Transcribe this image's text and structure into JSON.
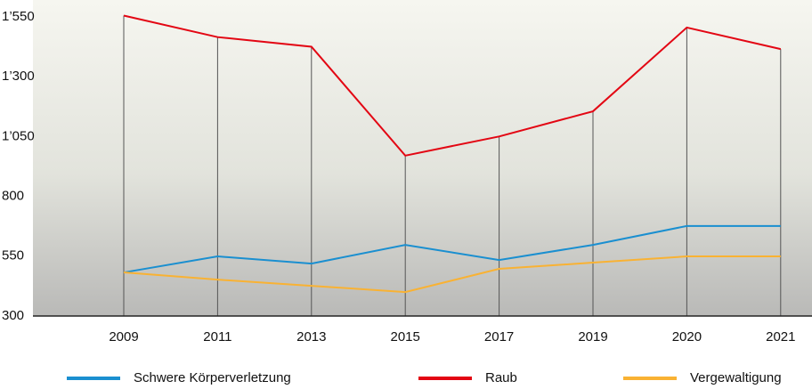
{
  "chart_data": {
    "type": "line",
    "categories": [
      "2009",
      "2011",
      "2013",
      "2015",
      "2017",
      "2019",
      "2020",
      "2021"
    ],
    "series": [
      {
        "name": "Schwere Körperverletzung",
        "color": "#1a8fd0",
        "values": [
          482,
          549,
          519,
          597,
          534,
          597,
          676,
          676
        ]
      },
      {
        "name": "Raub",
        "color": "#e30613",
        "values": [
          1555,
          1465,
          1425,
          970,
          1050,
          1155,
          1505,
          1415
        ]
      },
      {
        "name": "Vergewaltigung",
        "color": "#f9b233",
        "values": [
          482,
          452,
          426,
          400,
          497,
          523,
          549,
          549
        ]
      }
    ],
    "ylim": [
      300,
      1620
    ],
    "yticks": [
      300,
      550,
      800,
      {
        "value": 1050,
        "label": "1’050"
      },
      {
        "value": 1300,
        "label": "1’300"
      },
      {
        "value": 1550,
        "label": "1’550"
      }
    ],
    "grid": false,
    "legend": "bottom"
  }
}
